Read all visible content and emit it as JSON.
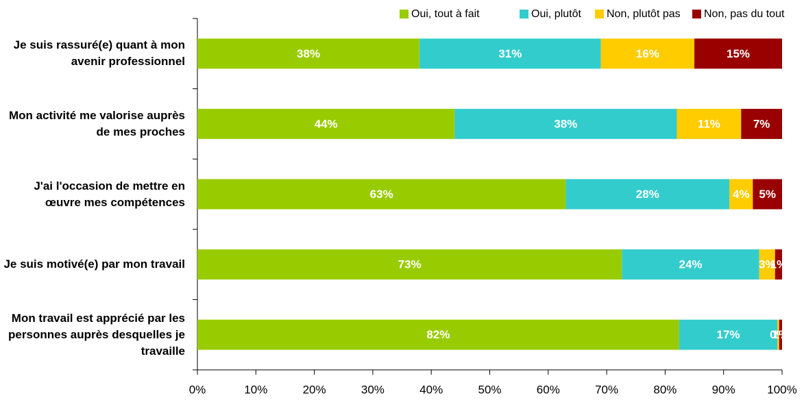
{
  "chart_data": {
    "type": "stacked_barh",
    "categories": [
      "Je suis rassuré(e) quant à mon avenir professionnel",
      "Mon activité me valorise auprès de mes proches",
      "J'ai l'occasion de mettre en œuvre mes compétences",
      "Je suis motivé(e) par mon travail",
      "Mon travail est apprécié par les personnes auprès desquelles je travaille"
    ],
    "series": [
      {
        "name": "Oui, tout à fait",
        "color": "#99cc00",
        "values": [
          38,
          44,
          63,
          72.6,
          82.4
        ],
        "value_labels": [
          "38%",
          "44%",
          "63%",
          "73%",
          "82%"
        ]
      },
      {
        "name": "Oui, plutôt",
        "color": "#33cccc",
        "values": [
          31,
          38,
          28,
          23.5,
          16.8
        ],
        "value_labels": [
          "31%",
          "38%",
          "28%",
          "24%",
          "17%"
        ]
      },
      {
        "name": "Non, plutôt pas",
        "color": "#ffcc00",
        "values": [
          16,
          11,
          4,
          2.7,
          0.3
        ],
        "value_labels": [
          "16%",
          "11%",
          "4%",
          "3%",
          "0%"
        ]
      },
      {
        "name": "Non, pas du tout",
        "color": "#990000",
        "values": [
          15,
          7,
          5,
          1.2,
          0.5
        ],
        "value_labels": [
          "15%",
          "7%",
          "5%",
          "1%",
          "1%"
        ]
      }
    ],
    "xlim": [
      0,
      100
    ],
    "xticks": [
      {
        "value": 0,
        "label": "0%"
      },
      {
        "value": 10,
        "label": "10%"
      },
      {
        "value": 20,
        "label": "20%"
      },
      {
        "value": 30,
        "label": "30%"
      },
      {
        "value": 40,
        "label": "40%"
      },
      {
        "value": 50,
        "label": "50%"
      },
      {
        "value": 60,
        "label": "60%"
      },
      {
        "value": 70,
        "label": "70%"
      },
      {
        "value": 80,
        "label": "80%"
      },
      {
        "value": 90,
        "label": "90%"
      },
      {
        "value": 100,
        "label": "100%"
      }
    ],
    "legend": "top"
  }
}
